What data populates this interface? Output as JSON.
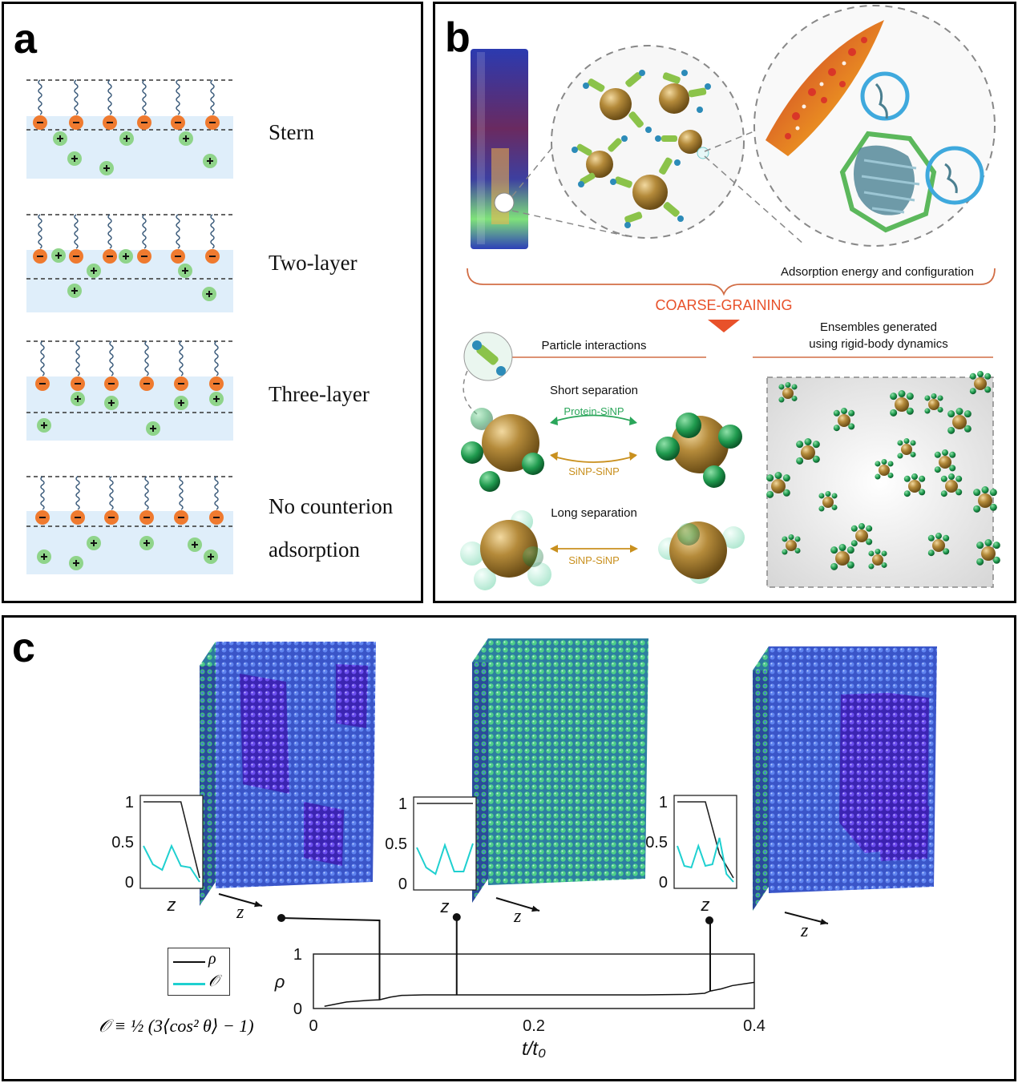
{
  "panels": {
    "a": {
      "label": "a",
      "layers": [
        {
          "name": "Stern"
        },
        {
          "name": "Two-layer"
        },
        {
          "name": "Three-layer"
        },
        {
          "name": "No counterion",
          "name2": "adsorption"
        }
      ]
    },
    "b": {
      "label": "b",
      "adsorption_label": "Adsorption energy and configuration",
      "coarse_graining": "COARSE-GRAINING",
      "particle_interactions": "Particle interactions",
      "ensembles_line1": "Ensembles generated",
      "ensembles_line2": "using  rigid-body dynamics",
      "short_separation": "Short separation",
      "protein_sinp": "Protein-SiNP",
      "sinp_sinp_short": "SiNP-SiNP",
      "long_separation": "Long separation",
      "sinp_sinp_long": "SiNP-SiNP"
    },
    "c": {
      "label": "c",
      "inset_y_ticks": [
        "1",
        "0.5",
        "0"
      ],
      "inset_xlabel": "z",
      "axis_z_label": "z",
      "legend_rho": "ρ",
      "legend_order": "𝒪",
      "formula": "𝒪 ≡ ½ (3⟨cos² θ⟩ − 1)",
      "main_ylabel": "ρ",
      "main_y_ticks": [
        "1",
        "0"
      ],
      "main_x_ticks": [
        "0",
        "0.2",
        "0.4"
      ],
      "main_xlabel": "t/t₀"
    }
  },
  "colors": {
    "anion": "#ef7a2f",
    "cation": "#8fd48a",
    "stern_band": "#dfeefa",
    "particle_core": "#b48a3a",
    "ligand_green": "#2aa65a",
    "coarse_orange": "#e8512a",
    "cyan_line": "#1fd0d0",
    "lattice_blue": "#3d5fd6",
    "lattice_green": "#3fc07a"
  },
  "chart_data": {
    "type": "line",
    "xlabel": "t/t₀",
    "ylabel": "ρ",
    "xlim": [
      0,
      0.4
    ],
    "ylim": [
      0,
      1
    ],
    "series": [
      {
        "name": "ρ",
        "x": [
          0.01,
          0.03,
          0.05,
          0.06,
          0.07,
          0.08,
          0.1,
          0.15,
          0.2,
          0.25,
          0.3,
          0.34,
          0.355,
          0.36,
          0.37,
          0.38,
          0.39,
          0.4
        ],
        "y": [
          0.04,
          0.12,
          0.15,
          0.16,
          0.21,
          0.24,
          0.25,
          0.25,
          0.25,
          0.25,
          0.25,
          0.26,
          0.28,
          0.32,
          0.36,
          0.42,
          0.45,
          0.48
        ]
      }
    ],
    "markers_x": [
      0.06,
      0.13,
      0.36
    ],
    "insets": [
      {
        "rho": [
          1,
          1,
          1,
          0.05
        ],
        "order": [
          0.45,
          0.22,
          0.15,
          0.45,
          0.2,
          0.18,
          0.0
        ]
      },
      {
        "rho": [
          1,
          1,
          1,
          1
        ],
        "order": [
          0.45,
          0.2,
          0.12,
          0.48,
          0.15,
          0.15,
          0.5
        ]
      },
      {
        "rho": [
          1,
          1,
          1,
          0.35,
          0.05
        ],
        "order": [
          0.45,
          0.2,
          0.18,
          0.45,
          0.2,
          0.22,
          0.55,
          0.1,
          0.0
        ]
      }
    ]
  }
}
